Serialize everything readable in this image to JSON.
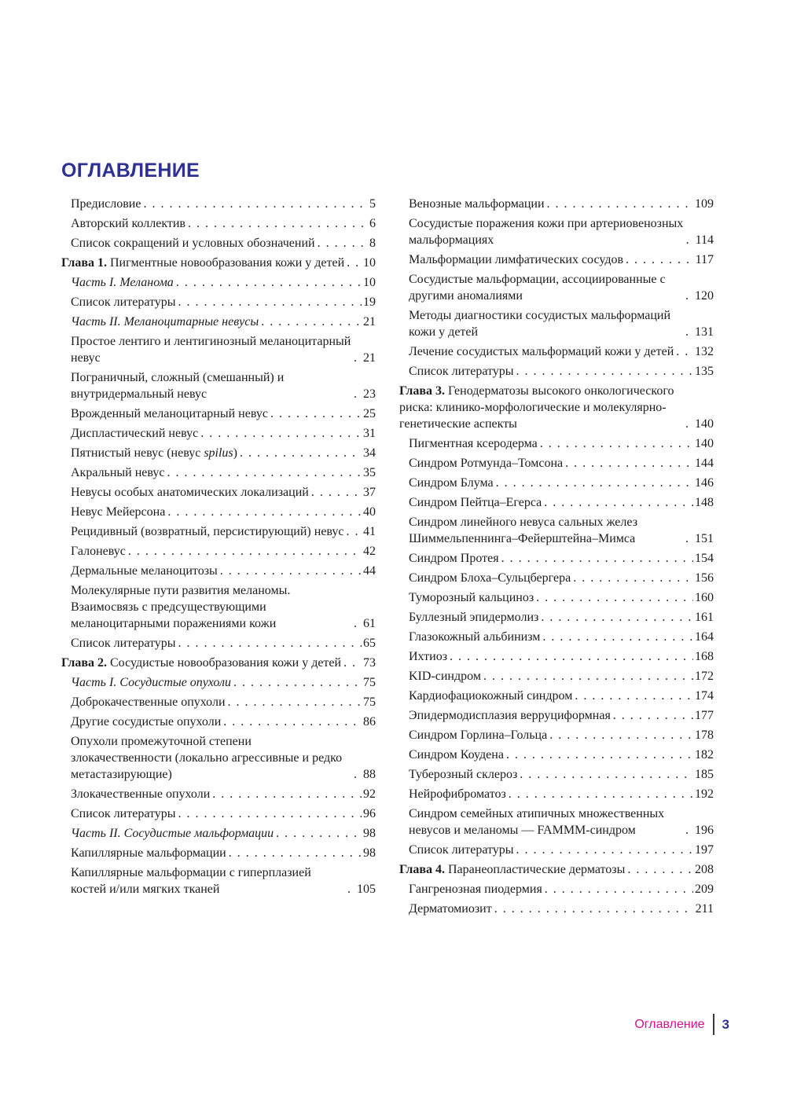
{
  "header": {
    "title": "ОГЛАВЛЕНИЕ"
  },
  "footer": {
    "section_label": "Оглавление",
    "page_number": "3"
  },
  "colors": {
    "heading": "#2e3192",
    "footer_label": "#d4108e",
    "footer_page": "#2e3192",
    "body_text": "#1c1c1c"
  },
  "toc": {
    "left_column": [
      {
        "kind": "item",
        "text": "Предисловие",
        "page": "5"
      },
      {
        "kind": "item",
        "text": "Авторский коллектив",
        "page": "6"
      },
      {
        "kind": "item",
        "text": "Список сокращений и условных обозначений",
        "page": "8"
      },
      {
        "kind": "chapter",
        "segments": [
          {
            "text": "Глава 1.",
            "style": "bold"
          },
          {
            "text": " Пигментные новообразования кожи у детей"
          }
        ],
        "page": "10"
      },
      {
        "kind": "part",
        "text": "Часть I. Меланома",
        "page": "10"
      },
      {
        "kind": "item",
        "text": "Список литературы",
        "page": "19"
      },
      {
        "kind": "part",
        "text": "Часть II. Меланоцитарные невусы",
        "page": "21"
      },
      {
        "kind": "item",
        "text": "Простое лентиго и лентигинозный меланоцитарный невус",
        "page": "21"
      },
      {
        "kind": "item",
        "text": "Пограничный, сложный (смешанный) и внутридермальный невус",
        "page": "23"
      },
      {
        "kind": "item",
        "text": "Врожденный меланоцитарный невус",
        "page": "25"
      },
      {
        "kind": "item",
        "text": "Диспластический невус",
        "page": "31"
      },
      {
        "kind": "item",
        "segments": [
          {
            "text": "Пятнистый невус (невус "
          },
          {
            "text": "spilus",
            "style": "italic"
          },
          {
            "text": ")"
          }
        ],
        "page": "34"
      },
      {
        "kind": "item",
        "text": "Акральный невус",
        "page": "35"
      },
      {
        "kind": "item",
        "text": "Невусы особых анатомических локализаций",
        "page": "37"
      },
      {
        "kind": "item",
        "text": "Невус Мейерсона",
        "page": "40"
      },
      {
        "kind": "item",
        "text": "Рецидивный (возвратный, персистирующий) невус",
        "page": "41"
      },
      {
        "kind": "item",
        "text": "Галоневус",
        "page": "42"
      },
      {
        "kind": "item",
        "text": "Дермальные меланоцитозы",
        "page": "44"
      },
      {
        "kind": "item",
        "text": "Молекулярные пути развития меланомы. Взаимосвязь с предсуществующими меланоцитарными поражениями кожи",
        "page": "61"
      },
      {
        "kind": "item",
        "text": "Список литературы",
        "page": "65"
      },
      {
        "kind": "chapter",
        "segments": [
          {
            "text": "Глава 2.",
            "style": "bold"
          },
          {
            "text": " Сосудистые новообразования кожи у детей"
          }
        ],
        "page": "73"
      },
      {
        "kind": "part",
        "text": "Часть I. Сосудистые опухоли",
        "page": "75"
      },
      {
        "kind": "item",
        "text": "Доброкачественные опухоли",
        "page": "75"
      },
      {
        "kind": "item",
        "text": "Другие сосудистые опухоли",
        "page": "86"
      },
      {
        "kind": "item",
        "text": "Опухоли промежуточной степени злокачественности (локально агрессивные и редко метастазирующие)",
        "page": "88"
      },
      {
        "kind": "item",
        "text": "Злокачественные опухоли",
        "page": "92"
      },
      {
        "kind": "item",
        "text": "Список литературы",
        "page": "96"
      },
      {
        "kind": "part",
        "text": "Часть II. Сосудистые мальформации",
        "page": "98"
      },
      {
        "kind": "item",
        "text": "Капиллярные мальформации",
        "page": "98"
      },
      {
        "kind": "item",
        "text": "Капиллярные мальформации с гиперплазией костей и/или мягких тканей",
        "page": "105"
      }
    ],
    "right_column": [
      {
        "kind": "item",
        "text": "Венозные мальформации",
        "page": "109"
      },
      {
        "kind": "item",
        "text": "Сосудистые поражения кожи при артериовенозных мальформациях",
        "page": "114"
      },
      {
        "kind": "item",
        "text": "Мальформации лимфатических сосудов",
        "page": "117"
      },
      {
        "kind": "item",
        "text": "Сосудистые мальформации, ассоциированные с другими аномалиями",
        "page": "120"
      },
      {
        "kind": "item",
        "text": "Методы диагностики сосудистых мальформаций кожи у детей",
        "page": "131"
      },
      {
        "kind": "item",
        "text": "Лечение сосудистых мальформаций кожи у детей",
        "page": "132"
      },
      {
        "kind": "item",
        "text": "Список литературы",
        "page": "135"
      },
      {
        "kind": "chapter",
        "segments": [
          {
            "text": "Глава 3.",
            "style": "bold"
          },
          {
            "text": " Генодерматозы высокого онкологического риска: клинико-морфологические и молекулярно-генетические аспекты"
          }
        ],
        "page": "140"
      },
      {
        "kind": "item",
        "text": "Пигментная ксеродерма",
        "page": "140"
      },
      {
        "kind": "item",
        "text": "Синдром Ротмунда–Томсона",
        "page": "144"
      },
      {
        "kind": "item",
        "text": "Синдром Блума",
        "page": "146"
      },
      {
        "kind": "item",
        "text": "Синдром Пейтца–Егерса",
        "page": "148"
      },
      {
        "kind": "item",
        "text": "Синдром линейного невуса сальных желез Шиммельпеннинга–Фейерштейна–Мимса",
        "page": "151"
      },
      {
        "kind": "item",
        "text": "Синдром Протея",
        "page": "154"
      },
      {
        "kind": "item",
        "text": "Синдром Блоха–Сульцбергера",
        "page": "156"
      },
      {
        "kind": "item",
        "text": "Туморозный кальциноз",
        "page": "160"
      },
      {
        "kind": "item",
        "text": "Буллезный эпидермолиз",
        "page": "161"
      },
      {
        "kind": "item",
        "text": "Глазокожный альбинизм",
        "page": "164"
      },
      {
        "kind": "item",
        "text": "Ихтиоз",
        "page": "168"
      },
      {
        "kind": "item",
        "text": "KID-синдром",
        "page": "172"
      },
      {
        "kind": "item",
        "text": "Кардиофациокожный синдром",
        "page": "174"
      },
      {
        "kind": "item",
        "text": "Эпидермодисплазия верруциформная",
        "page": "177"
      },
      {
        "kind": "item",
        "text": "Синдром Горлина–Гольца",
        "page": "178"
      },
      {
        "kind": "item",
        "text": "Синдром Коудена",
        "page": "182"
      },
      {
        "kind": "item",
        "text": "Туберозный склероз",
        "page": "185"
      },
      {
        "kind": "item",
        "text": "Нейрофиброматоз",
        "page": "192"
      },
      {
        "kind": "item",
        "text": "Синдром семейных атипичных множественных невусов и меланомы — FAMMM-синдром",
        "page": "196"
      },
      {
        "kind": "item",
        "text": "Список литературы",
        "page": "197"
      },
      {
        "kind": "chapter",
        "segments": [
          {
            "text": "Глава 4.",
            "style": "bold"
          },
          {
            "text": " Паранеопластические дерматозы"
          }
        ],
        "page": "208"
      },
      {
        "kind": "item",
        "text": "Гангренозная пиодермия",
        "page": "209"
      },
      {
        "kind": "item",
        "text": "Дерматомиозит",
        "page": "211"
      }
    ]
  }
}
